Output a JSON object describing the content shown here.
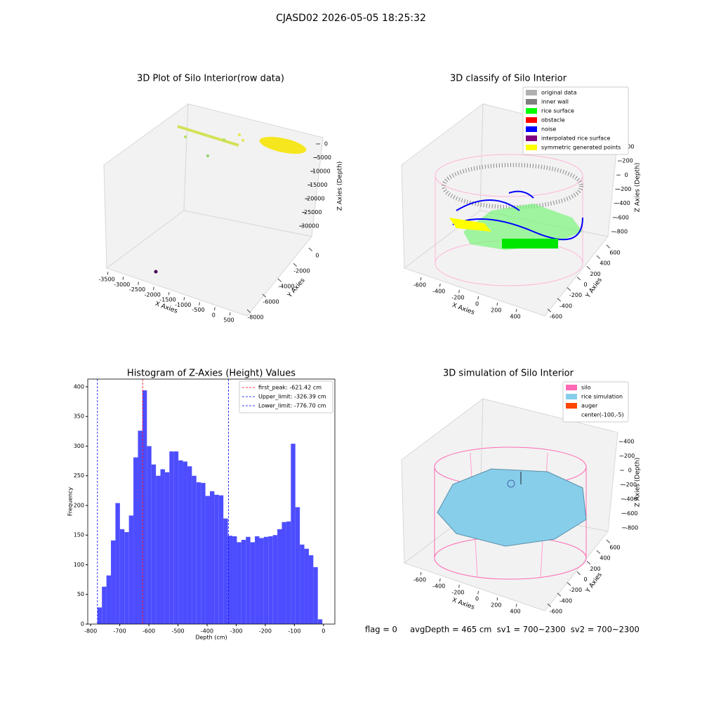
{
  "title": "CJASD02 2026-05-05 18:25:32",
  "footer": "flag = 0     avgDepth = 465 cm  sv1 = 700~2300  sv2 = 700~2300",
  "chart_data": [
    {
      "type": "scatter3d",
      "title": "3D Plot of Silo Interior(row data)",
      "xlabel": "X Axies",
      "ylabel": "Y Axies",
      "zlabel": "Z Axies (Depth)",
      "xlim": [
        -3700,
        700
      ],
      "ylim": [
        -8400,
        700
      ],
      "zlim": [
        -33000,
        2000
      ],
      "xticks": [
        -3500,
        -3000,
        -2500,
        -2000,
        -1500,
        -1000,
        -500,
        0,
        500
      ],
      "yticks": [
        -8000,
        -6000,
        -4000,
        -2000,
        0
      ],
      "zticks": [
        0,
        -5000,
        -10000,
        -15000,
        -20000,
        -25000,
        -30000
      ]
    },
    {
      "type": "scatter3d",
      "title": "3D classify of Silo Interior",
      "xlabel": "X Axies",
      "ylabel": "Y Axies",
      "zlabel": "Z Axies (Depth)",
      "xlim": [
        -700,
        500
      ],
      "ylim": [
        -700,
        700
      ],
      "zlim": [
        -900,
        500
      ],
      "xticks": [
        -600,
        -400,
        -200,
        0,
        200,
        400
      ],
      "yticks": [
        -600,
        -400,
        -200,
        0,
        200,
        400,
        600
      ],
      "zticks": [
        -800,
        -600,
        -400,
        -200,
        0,
        200,
        400
      ],
      "legend": [
        {
          "name": "original data",
          "color": "#b0b0b0"
        },
        {
          "name": "inner wall",
          "color": "#808080"
        },
        {
          "name": "rice surface",
          "color": "#00ff00"
        },
        {
          "name": "obstacle",
          "color": "#ff0000"
        },
        {
          "name": "noise",
          "color": "#0000ff"
        },
        {
          "name": "interpolated rice surface",
          "color": "#800080"
        },
        {
          "name": "symmetric generated points",
          "color": "#ffff00"
        }
      ]
    },
    {
      "type": "histogram",
      "title": "Histogram of Z-Axies (Height) Values",
      "xlabel": "Depth (cm)",
      "ylabel": "Frequency",
      "color": "#4d4dff",
      "xlim": [
        -810,
        39
      ],
      "ylim": [
        0,
        413
      ],
      "xticks": [
        -800,
        -700,
        -600,
        -500,
        -400,
        -300,
        -200,
        -100,
        0
      ],
      "yticks": [
        0,
        50,
        100,
        150,
        200,
        250,
        300,
        350,
        400
      ],
      "bins": [
        -776.7,
        -761.25,
        -745.79,
        -730.34,
        -714.88,
        -699.43,
        -683.98,
        -668.52,
        -653.07,
        -637.61,
        -622.16,
        -606.71,
        -591.25,
        -575.8,
        -560.34,
        -544.89,
        -529.44,
        -513.98,
        -498.53,
        -483.07,
        -467.62,
        -452.17,
        -436.71,
        -421.26,
        -405.8,
        -390.35,
        -374.9,
        -359.44,
        -343.99,
        -328.53,
        -313.08,
        -297.63,
        -282.17,
        -266.72,
        -251.26,
        -235.81,
        -220.36,
        -204.9,
        -189.45,
        -173.99,
        -158.54,
        -143.09,
        -127.63,
        -112.18,
        -96.72,
        -81.27,
        -65.82,
        -50.36,
        -34.91,
        -19.45,
        -4.0
      ],
      "values": [
        28,
        63,
        82,
        141,
        204,
        160,
        155,
        183,
        281,
        326,
        394,
        300,
        269,
        250,
        261,
        256,
        291,
        291,
        276,
        274,
        266,
        250,
        239,
        238,
        216,
        224,
        218,
        217,
        178,
        149,
        148,
        138,
        142,
        147,
        138,
        148,
        145,
        147,
        148,
        150,
        160,
        172,
        173,
        304,
        197,
        134,
        127,
        116,
        96,
        8
      ],
      "vlines": [
        {
          "name": "first_peak: -621.42 cm",
          "value": -621.42,
          "color": "#ff0000"
        },
        {
          "name": "Upper_limit: -326.39 cm",
          "value": -326.39,
          "color": "#0000ff"
        },
        {
          "name": "Lower_limit: -776.70 cm",
          "value": -776.7,
          "color": "#0000ff"
        }
      ]
    },
    {
      "type": "scatter3d",
      "title": "3D simulation of Silo Interior",
      "xlabel": "X Axies",
      "ylabel": "Y Axies",
      "zlabel": "Z Axies (Depth)",
      "xlim": [
        -700,
        500
      ],
      "ylim": [
        -700,
        700
      ],
      "zlim": [
        -900,
        500
      ],
      "xticks": [
        -600,
        -400,
        -200,
        0,
        200,
        400
      ],
      "yticks": [
        -600,
        -400,
        -200,
        0,
        200,
        400,
        600
      ],
      "zticks": [
        -800,
        -600,
        -400,
        -200,
        0,
        200,
        400
      ],
      "legend": [
        {
          "name": "silo",
          "color": "#ff69b4"
        },
        {
          "name": "rice simulation",
          "color": "#87ceeb"
        },
        {
          "name": "auger",
          "color": "#ff4500"
        },
        {
          "name": "center(-100,-5)"
        }
      ]
    }
  ]
}
